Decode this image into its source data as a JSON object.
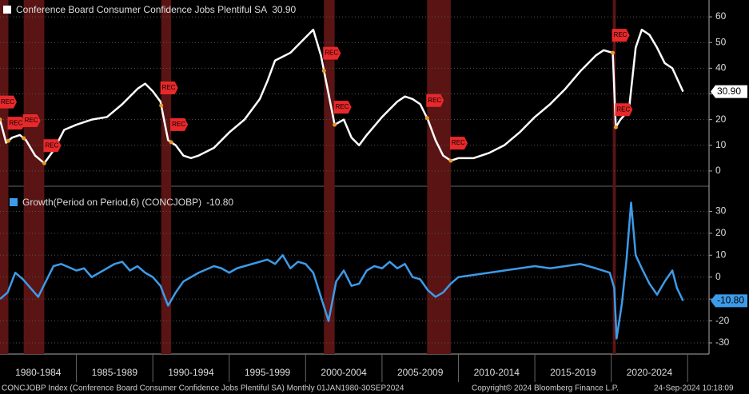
{
  "chart_data": [
    {
      "type": "line",
      "xlim": [
        1980,
        2026.4
      ],
      "ylim": [
        -5,
        65
      ],
      "yticks": [
        0,
        10,
        20,
        30,
        40,
        50,
        60
      ],
      "grid": true,
      "recessions": [
        [
          1980.0,
          1980.55
        ],
        [
          1981.55,
          1982.9
        ],
        [
          1990.55,
          1991.2
        ],
        [
          2001.2,
          2001.9
        ],
        [
          2007.95,
          2009.5
        ],
        [
          2020.1,
          2020.3
        ]
      ],
      "recession_label": "REC",
      "series": [
        {
          "name": "Conference Board Consumer Confidence Jobs Plentiful SA",
          "color": "#ffffff",
          "last_label": "30.90",
          "x": [
            1980.0,
            1980.4,
            1980.8,
            1981.3,
            1981.7,
            1982.3,
            1982.9,
            1983.5,
            1984.2,
            1985,
            1986,
            1987,
            1988,
            1989,
            1989.5,
            1990,
            1990.5,
            1991,
            1991.5,
            1992,
            1992.5,
            1993,
            1994,
            1995,
            1996,
            1997,
            1997.5,
            1998,
            1999,
            2000,
            2000.5,
            2001,
            2001.5,
            2001.9,
            2002.5,
            2003,
            2003.5,
            2004,
            2005,
            2006,
            2006.5,
            2007,
            2007.5,
            2008,
            2008.5,
            2009,
            2009.5,
            2010,
            2011,
            2012,
            2013,
            2014,
            2015,
            2016,
            2017,
            2018,
            2019,
            2019.5,
            2020.1,
            2020.3,
            2020.6,
            2020.9,
            2021.2,
            2021.6,
            2022,
            2022.5,
            2023,
            2023.5,
            2024,
            2024.7
          ],
          "values": [
            20,
            11,
            13,
            14,
            12,
            6,
            3,
            8,
            16,
            18,
            20,
            21,
            26,
            32,
            34,
            31,
            27,
            12,
            10,
            6,
            5,
            6,
            9,
            15,
            20,
            28,
            35,
            43,
            46,
            52,
            55,
            45,
            30,
            18,
            20,
            13,
            10,
            14,
            21,
            27,
            29,
            28,
            26,
            20,
            12,
            6,
            4,
            5,
            5,
            7,
            10,
            15,
            21,
            26,
            32,
            39,
            45,
            47,
            46,
            17,
            20,
            22,
            26,
            48,
            55,
            53,
            48,
            42,
            40,
            30.9
          ]
        }
      ]
    },
    {
      "type": "line",
      "xlim": [
        1980,
        2026.4
      ],
      "ylim": [
        -34,
        40
      ],
      "yticks": [
        -30,
        -20,
        -10,
        0,
        10,
        20,
        30
      ],
      "grid": true,
      "xticks": [
        {
          "value": 1982.5,
          "label": "1980-1984"
        },
        {
          "value": 1987.5,
          "label": "1985-1989"
        },
        {
          "value": 1992.5,
          "label": "1990-1994"
        },
        {
          "value": 1997.5,
          "label": "1995-1999"
        },
        {
          "value": 2002.5,
          "label": "2000-2004"
        },
        {
          "value": 2007.5,
          "label": "2005-2009"
        },
        {
          "value": 2012.5,
          "label": "2010-2014"
        },
        {
          "value": 2017.5,
          "label": "2015-2019"
        },
        {
          "value": 2022.5,
          "label": "2020-2024"
        }
      ],
      "recessions": [
        [
          1980.0,
          1980.55
        ],
        [
          1981.55,
          1982.9
        ],
        [
          1990.55,
          1991.2
        ],
        [
          2001.2,
          2001.9
        ],
        [
          2007.95,
          2009.5
        ],
        [
          2020.1,
          2020.3
        ]
      ],
      "series": [
        {
          "name": "Growth(Period on Period,6) (CONCJOBP)",
          "color": "#3d9be9",
          "last_label": "-10.80",
          "x": [
            1980,
            1980.5,
            1981,
            1981.5,
            1982,
            1982.5,
            1983,
            1983.5,
            1984,
            1985,
            1985.5,
            1986,
            1986.5,
            1987,
            1987.5,
            1988,
            1988.5,
            1989,
            1989.5,
            1990,
            1990.5,
            1991,
            1991.5,
            1992,
            1992.5,
            1993,
            1994,
            1994.5,
            1995,
            1995.5,
            1996,
            1997,
            1997.5,
            1998,
            1998.5,
            1999,
            1999.5,
            2000,
            2000.5,
            2001,
            2001.5,
            2002,
            2002.5,
            2003,
            2003.5,
            2004,
            2004.5,
            2005,
            2005.5,
            2006,
            2006.5,
            2007,
            2007.5,
            2008,
            2008.5,
            2009,
            2009.5,
            2010,
            2011,
            2012,
            2013,
            2014,
            2015,
            2016,
            2017,
            2018,
            2019,
            2019.9,
            2020.2,
            2020.35,
            2020.7,
            2021,
            2021.3,
            2021.6,
            2022,
            2022.5,
            2023,
            2023.5,
            2024,
            2024.3,
            2024.7
          ],
          "values": [
            -10,
            -7,
            2,
            -1,
            -5,
            -9,
            -2,
            5,
            6,
            3,
            4,
            0,
            2,
            4,
            6,
            7,
            3,
            5,
            2,
            0,
            -4,
            -13,
            -7,
            -2,
            0,
            2,
            5,
            4,
            2,
            4,
            5,
            7,
            8,
            6,
            10,
            4,
            7,
            6,
            2,
            -9,
            -20,
            -2,
            3,
            -4,
            -3,
            3,
            5,
            4,
            7,
            4,
            6,
            0,
            -1,
            -6,
            -9,
            -7,
            -3,
            0,
            1,
            2,
            3,
            4,
            5,
            4,
            5,
            6,
            4,
            2,
            -5,
            -28,
            -12,
            8,
            34,
            10,
            4,
            -3,
            -8,
            -2,
            3,
            -5,
            -10.8
          ]
        }
      ]
    }
  ],
  "footer": {
    "left": "CONCJOBP Index (Conference Board Consumer Confidence Jobs Plentiful SA)  Monthly 01JAN1980-30SEP2024",
    "center": "Copyright© 2024 Bloomberg Finance L.P.",
    "right": "24-Sep-2024 10:18:09"
  }
}
